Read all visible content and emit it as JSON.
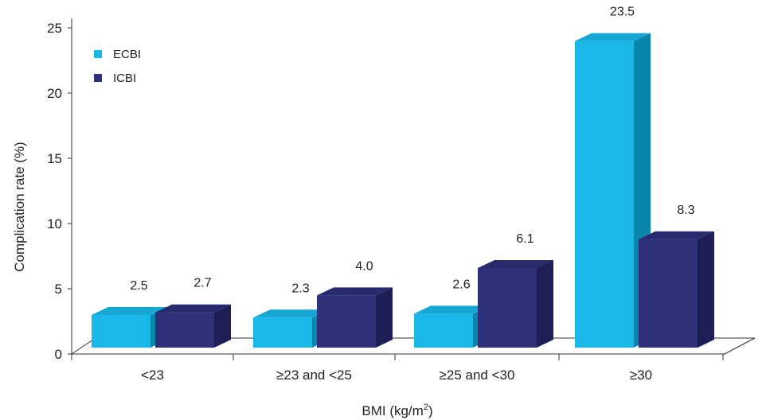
{
  "chart_data": {
    "type": "bar",
    "categories": [
      "<23",
      "≥23 and <25",
      "≥25 and <30",
      "≥30"
    ],
    "series": [
      {
        "name": "ECBI",
        "values": [
          2.5,
          2.3,
          2.6,
          23.5
        ],
        "labels": [
          "2.5",
          "2.3",
          "2.6",
          "23.5"
        ]
      },
      {
        "name": "ICBI",
        "values": [
          2.7,
          4.0,
          6.1,
          8.3
        ],
        "labels": [
          "2.7",
          "4.0",
          "6.1",
          "8.3"
        ]
      }
    ],
    "xlabel_main": "BMI (kg/m",
    "xlabel_sup": "2",
    "xlabel_end": ")",
    "ylabel": "Complication rate (%)",
    "ylim": [
      0,
      25
    ],
    "yticks": [
      "0",
      "5",
      "10",
      "15",
      "20",
      "25"
    ],
    "legend_position": "top-left",
    "three_d": true
  },
  "colors": {
    "ECBI_front": "#19b8e8",
    "ECBI_top": "#17a7d4",
    "ECBI_side": "#0a86ad",
    "ICBI_front": "#2e317a",
    "ICBI_top": "#272a6c",
    "ICBI_side": "#1c1e55",
    "axis": "#333333"
  }
}
